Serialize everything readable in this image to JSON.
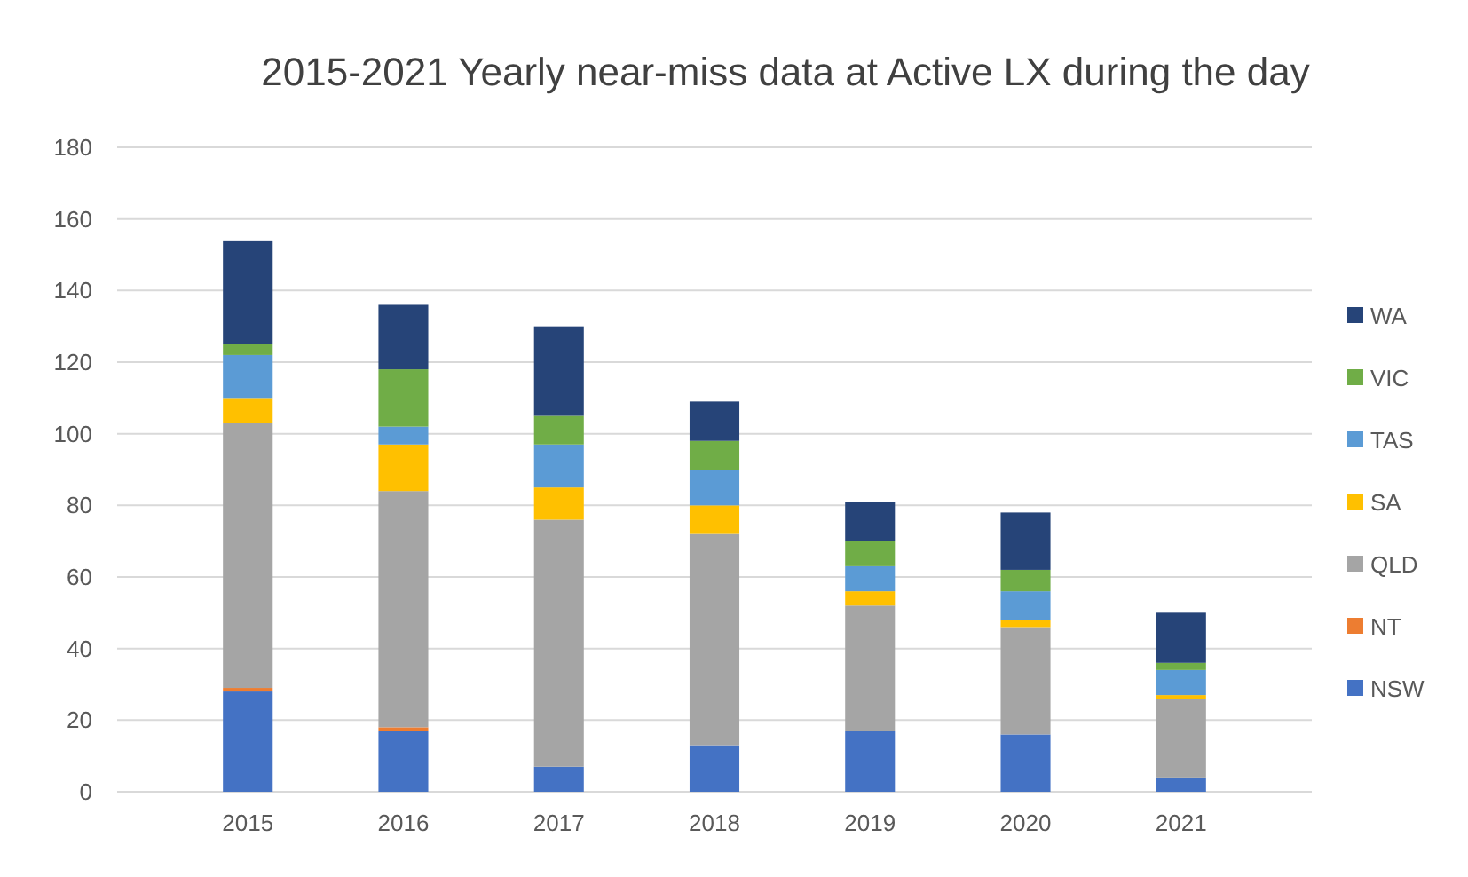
{
  "chart_data": {
    "type": "bar",
    "title": "2015-2021 Yearly near-miss data at Active LX during the day",
    "categories": [
      "2015",
      "2016",
      "2017",
      "2018",
      "2019",
      "2020",
      "2021"
    ],
    "stacked": true,
    "ylim": [
      0,
      180
    ],
    "yticks": [
      0,
      20,
      40,
      60,
      80,
      100,
      120,
      140,
      160,
      180
    ],
    "grid": "y",
    "legend": "right",
    "series": [
      {
        "name": "NSW",
        "color": "#4472c4",
        "values": [
          28,
          17,
          7,
          13,
          17,
          16,
          4
        ]
      },
      {
        "name": "NT",
        "color": "#ed7d31",
        "values": [
          1,
          1,
          0,
          0,
          0,
          0,
          0
        ]
      },
      {
        "name": "QLD",
        "color": "#a5a5a5",
        "values": [
          74,
          66,
          69,
          59,
          35,
          30,
          22
        ]
      },
      {
        "name": "SA",
        "color": "#ffc000",
        "values": [
          7,
          13,
          9,
          8,
          4,
          2,
          1
        ]
      },
      {
        "name": "TAS",
        "color": "#5b9bd5",
        "values": [
          12,
          5,
          12,
          10,
          7,
          8,
          7
        ]
      },
      {
        "name": "VIC",
        "color": "#70ad47",
        "values": [
          3,
          16,
          8,
          8,
          7,
          6,
          2
        ]
      },
      {
        "name": "WA",
        "color": "#264478",
        "values": [
          29,
          18,
          25,
          11,
          11,
          16,
          14
        ]
      }
    ]
  }
}
